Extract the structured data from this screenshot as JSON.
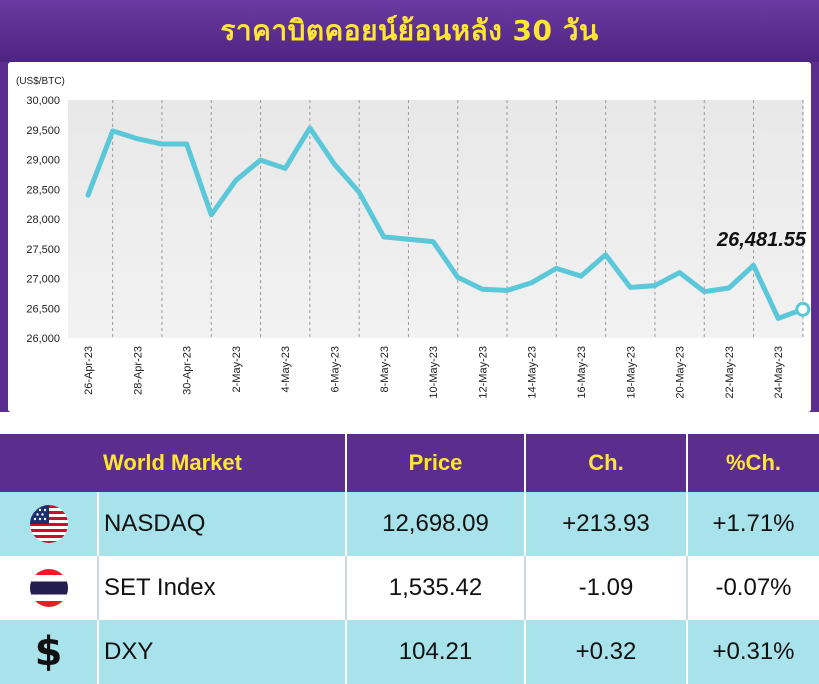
{
  "header": {
    "title": "ราคาบิตคอยน์ย้อนหลัง 30 วัน"
  },
  "chart_data": {
    "type": "line",
    "unit_label": "(US$/BTC)",
    "ylim": [
      26000,
      30000
    ],
    "y_ticks": [
      "30,000",
      "29,500",
      "29,000",
      "28,500",
      "28,000",
      "27,500",
      "27,000",
      "26,500",
      "26,000"
    ],
    "y_tick_values": [
      30000,
      29500,
      29000,
      28500,
      28000,
      27500,
      27000,
      26500,
      26000
    ],
    "x_tick_labels": [
      "26-Apr-23",
      "28-Apr-23",
      "30-Apr-23",
      "2-May-23",
      "4-May-23",
      "6-May-23",
      "8-May-23",
      "10-May-23",
      "12-May-23",
      "14-May-23",
      "16-May-23",
      "18-May-23",
      "20-May-23",
      "22-May-23",
      "24-May-23"
    ],
    "series": [
      {
        "values": [
          28400,
          29480,
          29350,
          29260,
          29260,
          28070,
          28650,
          28990,
          28850,
          29530,
          28920,
          28450,
          27700,
          27660,
          27620,
          27020,
          26820,
          26800,
          26930,
          27170,
          27040,
          27400,
          26850,
          26880,
          27100,
          26780,
          26840,
          27220,
          26330,
          26481.55
        ],
        "color": "#5ac8d8"
      }
    ],
    "last_value_label": "26,481.55",
    "grid": true
  },
  "table": {
    "headers": {
      "market": "World Market",
      "price": "Price",
      "ch": "Ch.",
      "pch": "%Ch."
    },
    "rows": [
      {
        "icon": "us-flag-icon",
        "name": "NASDAQ",
        "price": "12,698.09",
        "ch": "+213.93",
        "pch": "+1.71%"
      },
      {
        "icon": "thai-flag-icon",
        "name": "SET Index",
        "price": "1,535.42",
        "ch": "-1.09",
        "pch": "-0.07%"
      },
      {
        "icon": "dollar-icon",
        "name": "DXY",
        "price": "104.21",
        "ch": "+0.32",
        "pch": "+0.31%"
      }
    ]
  },
  "colors": {
    "header_bg": "#5b2d8e",
    "title": "#ffe633",
    "line": "#5ac8d8",
    "row_cyan": "#a8e2ea"
  }
}
